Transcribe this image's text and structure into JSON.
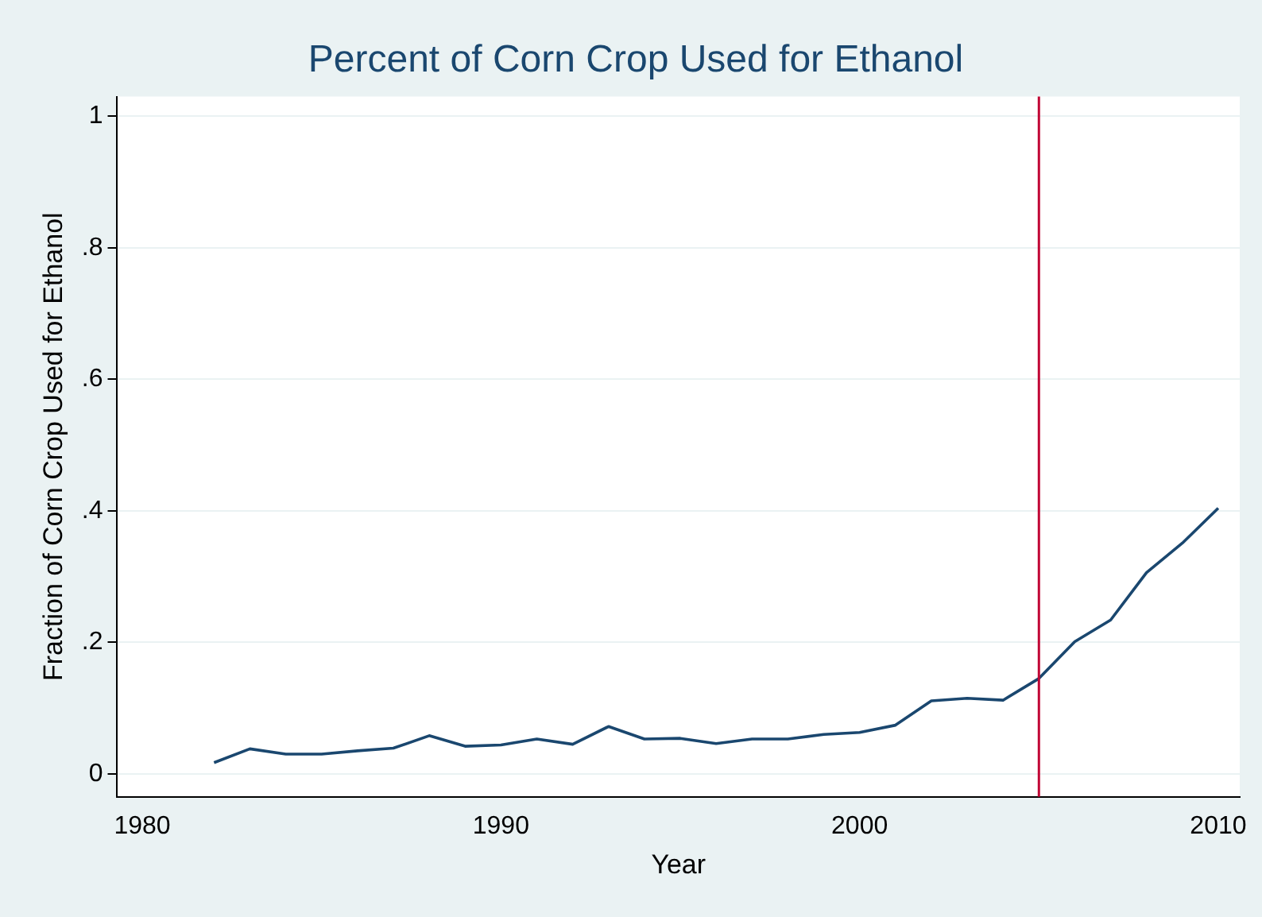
{
  "chart_data": {
    "type": "line",
    "title": "Percent of Corn Crop Used for Ethanol",
    "xlabel": "Year",
    "ylabel": "Fraction of Corn Crop Used for Ethanol",
    "x": [
      1982,
      1983,
      1984,
      1985,
      1986,
      1987,
      1988,
      1989,
      1990,
      1991,
      1992,
      1993,
      1994,
      1995,
      1996,
      1997,
      1998,
      1999,
      2000,
      2001,
      2002,
      2003,
      2004,
      2005,
      2006,
      2007,
      2008,
      2009,
      2010
    ],
    "series": [
      {
        "color": "#1a476f",
        "values": [
          0.017,
          0.038,
          0.03,
          0.03,
          0.035,
          0.039,
          0.058,
          0.042,
          0.044,
          0.053,
          0.045,
          0.072,
          0.053,
          0.054,
          0.046,
          0.053,
          0.053,
          0.06,
          0.063,
          0.074,
          0.111,
          0.115,
          0.112,
          0.145,
          0.201,
          0.234,
          0.306,
          0.351,
          0.404
        ]
      }
    ],
    "xlim": [
      1979.3,
      2010.6
    ],
    "xticks": [
      1980,
      1990,
      2000,
      2010
    ],
    "ylim": [
      -0.035,
      1.03
    ],
    "yticks": [
      0,
      {
        "value": 0.2,
        "label": ".2"
      },
      {
        "value": 0.4,
        "label": ".4"
      },
      {
        "value": 0.6,
        "label": ".6"
      },
      {
        "value": 0.8,
        "label": ".8"
      },
      1
    ],
    "grid": "y",
    "legend": false,
    "marker": "none",
    "line_style": "solid",
    "ref_lines": [
      {
        "axis": "x",
        "value": 2005,
        "color": "#c10534"
      }
    ]
  }
}
